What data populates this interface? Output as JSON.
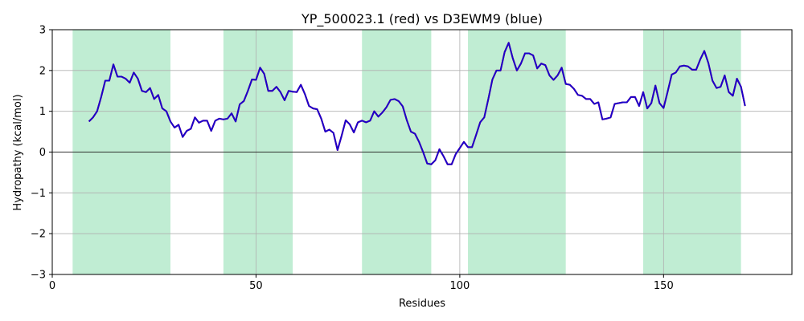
{
  "chart_data": {
    "type": "line",
    "title": "YP_500023.1 (red) vs D3EWM9 (blue)",
    "xlabel": "Residues",
    "ylabel": "Hydropathy (kcal/mol)",
    "xlim": [
      0,
      181.5
    ],
    "ylim": [
      -3,
      3
    ],
    "xticks": [
      0,
      50,
      100,
      150
    ],
    "yticks": [
      -3,
      -2,
      -1,
      0,
      1,
      2,
      3
    ],
    "grid": true,
    "zero_line": true,
    "highlight_regions": [
      [
        5,
        29
      ],
      [
        42,
        59
      ],
      [
        76,
        93
      ],
      [
        102,
        126
      ],
      [
        145,
        169
      ]
    ],
    "colors": {
      "region": "#c0edd3",
      "line_red": "#ff0000",
      "line_blue": "#1a00cc",
      "grid": "#b0b0b0"
    },
    "series": [
      {
        "x": [
          9,
          10,
          11,
          12,
          13,
          14,
          15,
          16,
          17,
          18,
          19,
          20,
          21,
          22,
          23,
          24,
          25,
          26,
          27,
          28,
          29,
          30,
          31,
          32,
          33,
          34,
          35,
          36,
          37,
          38,
          39,
          40,
          41,
          42,
          43,
          44,
          45,
          46,
          47,
          48,
          49,
          50,
          51,
          52,
          53,
          54,
          55,
          56,
          57,
          58,
          59,
          60,
          61,
          62,
          63,
          64,
          65,
          66,
          67,
          68,
          69,
          70,
          71,
          72,
          73,
          74,
          75,
          76,
          77,
          78,
          79,
          80,
          81,
          82,
          83,
          84,
          85,
          86,
          87,
          88,
          89,
          90,
          91,
          92,
          93,
          94,
          95,
          96,
          97,
          98,
          99,
          100,
          101,
          102,
          103,
          104,
          105,
          106,
          107,
          108,
          109,
          110,
          111,
          112,
          113,
          114,
          115,
          116,
          117,
          118,
          119,
          120,
          121,
          122,
          123,
          124,
          125,
          126,
          127,
          128,
          129,
          130,
          131,
          132,
          133,
          134,
          135,
          136,
          137,
          138,
          139,
          140,
          141,
          142,
          143,
          144,
          145,
          146,
          147,
          148,
          149,
          150,
          151,
          152,
          153,
          154,
          155,
          156,
          157,
          158,
          159,
          160,
          161,
          162,
          163,
          164,
          165,
          166,
          167,
          168,
          169,
          170
        ],
        "y": [
          0.75,
          0.85,
          1.0,
          1.35,
          1.75,
          1.75,
          2.15,
          1.85,
          1.85,
          1.8,
          1.7,
          1.95,
          1.8,
          1.5,
          1.47,
          1.57,
          1.3,
          1.4,
          1.07,
          1.0,
          0.75,
          0.6,
          0.67,
          0.37,
          0.52,
          0.57,
          0.85,
          0.72,
          0.77,
          0.77,
          0.52,
          0.77,
          0.82,
          0.8,
          0.82,
          0.95,
          0.75,
          1.17,
          1.25,
          1.5,
          1.78,
          1.77,
          2.07,
          1.92,
          1.5,
          1.5,
          1.6,
          1.47,
          1.27,
          1.5,
          1.48,
          1.47,
          1.65,
          1.42,
          1.13,
          1.07,
          1.05,
          0.82,
          0.5,
          0.55,
          0.47,
          0.05,
          0.4,
          0.78,
          0.68,
          0.48,
          0.73,
          0.77,
          0.73,
          0.77,
          1.0,
          0.87,
          0.97,
          1.1,
          1.28,
          1.3,
          1.25,
          1.12,
          0.78,
          0.5,
          0.45,
          0.25,
          0.0,
          -0.28,
          -0.3,
          -0.2,
          0.07,
          -0.1,
          -0.3,
          -0.3,
          -0.05,
          0.1,
          0.25,
          0.12,
          0.12,
          0.42,
          0.73,
          0.85,
          1.3,
          1.78,
          2.0,
          2.0,
          2.45,
          2.68,
          2.3,
          2.0,
          2.17,
          2.42,
          2.42,
          2.37,
          2.05,
          2.17,
          2.13,
          1.88,
          1.77,
          1.88,
          2.07,
          1.67,
          1.65,
          1.55,
          1.4,
          1.38,
          1.3,
          1.3,
          1.18,
          1.22,
          0.8,
          0.82,
          0.85,
          1.18,
          1.2,
          1.22,
          1.22,
          1.35,
          1.35,
          1.13,
          1.47,
          1.07,
          1.2,
          1.63,
          1.2,
          1.08,
          1.48,
          1.9,
          1.95,
          2.1,
          2.12,
          2.1,
          2.02,
          2.02,
          2.27,
          2.48,
          2.18,
          1.75,
          1.57,
          1.6,
          1.88,
          1.47,
          1.38,
          1.8,
          1.6,
          1.13
        ]
      },
      {
        "x": [
          9,
          10,
          11,
          12,
          13,
          14,
          15,
          16,
          17,
          18,
          19,
          20,
          21,
          22,
          23,
          24,
          25,
          26,
          27,
          28,
          29,
          30,
          31,
          32,
          33,
          34,
          35,
          36,
          37,
          38,
          39,
          40,
          41,
          42,
          43,
          44,
          45,
          46,
          47,
          48,
          49,
          50,
          51,
          52,
          53,
          54,
          55,
          56,
          57,
          58,
          59,
          60,
          61,
          62,
          63,
          64,
          65,
          66,
          67,
          68,
          69,
          70,
          71,
          72,
          73,
          74,
          75,
          76,
          77,
          78,
          79,
          80,
          81,
          82,
          83,
          84,
          85,
          86,
          87,
          88,
          89,
          90,
          91,
          92,
          93,
          94,
          95,
          96,
          97,
          98,
          99,
          100,
          101,
          102,
          103,
          104,
          105,
          106,
          107,
          108,
          109,
          110,
          111,
          112,
          113,
          114,
          115,
          116,
          117,
          118,
          119,
          120,
          121,
          122,
          123,
          124,
          125,
          126,
          127,
          128,
          129,
          130,
          131,
          132,
          133,
          134,
          135,
          136,
          137,
          138,
          139,
          140,
          141,
          142,
          143,
          144,
          145,
          146,
          147,
          148,
          149,
          150,
          151,
          152,
          153,
          154,
          155,
          156,
          157,
          158,
          159,
          160,
          161,
          162,
          163,
          164,
          165,
          166,
          167,
          168,
          169,
          170
        ],
        "y": [
          0.75,
          0.85,
          1.0,
          1.35,
          1.75,
          1.75,
          2.15,
          1.85,
          1.85,
          1.8,
          1.7,
          1.95,
          1.8,
          1.5,
          1.47,
          1.57,
          1.3,
          1.4,
          1.07,
          1.0,
          0.75,
          0.6,
          0.67,
          0.37,
          0.52,
          0.57,
          0.85,
          0.72,
          0.77,
          0.77,
          0.52,
          0.77,
          0.82,
          0.8,
          0.82,
          0.95,
          0.75,
          1.17,
          1.25,
          1.5,
          1.78,
          1.77,
          2.07,
          1.92,
          1.5,
          1.5,
          1.6,
          1.47,
          1.27,
          1.5,
          1.48,
          1.47,
          1.65,
          1.42,
          1.13,
          1.07,
          1.05,
          0.82,
          0.5,
          0.55,
          0.47,
          0.05,
          0.4,
          0.78,
          0.68,
          0.48,
          0.73,
          0.77,
          0.73,
          0.77,
          1.0,
          0.87,
          0.97,
          1.1,
          1.28,
          1.3,
          1.25,
          1.12,
          0.78,
          0.5,
          0.45,
          0.25,
          0.0,
          -0.28,
          -0.3,
          -0.2,
          0.07,
          -0.1,
          -0.3,
          -0.3,
          -0.05,
          0.1,
          0.25,
          0.12,
          0.12,
          0.42,
          0.73,
          0.85,
          1.3,
          1.78,
          2.0,
          2.0,
          2.45,
          2.68,
          2.3,
          2.0,
          2.17,
          2.42,
          2.42,
          2.37,
          2.05,
          2.17,
          2.13,
          1.88,
          1.77,
          1.88,
          2.07,
          1.67,
          1.65,
          1.55,
          1.4,
          1.38,
          1.3,
          1.3,
          1.18,
          1.22,
          0.8,
          0.82,
          0.85,
          1.18,
          1.2,
          1.22,
          1.22,
          1.35,
          1.35,
          1.13,
          1.47,
          1.07,
          1.2,
          1.63,
          1.2,
          1.08,
          1.48,
          1.9,
          1.95,
          2.1,
          2.12,
          2.1,
          2.02,
          2.02,
          2.27,
          2.48,
          2.18,
          1.75,
          1.57,
          1.6,
          1.88,
          1.47,
          1.38,
          1.8,
          1.6,
          1.13
        ]
      }
    ]
  }
}
